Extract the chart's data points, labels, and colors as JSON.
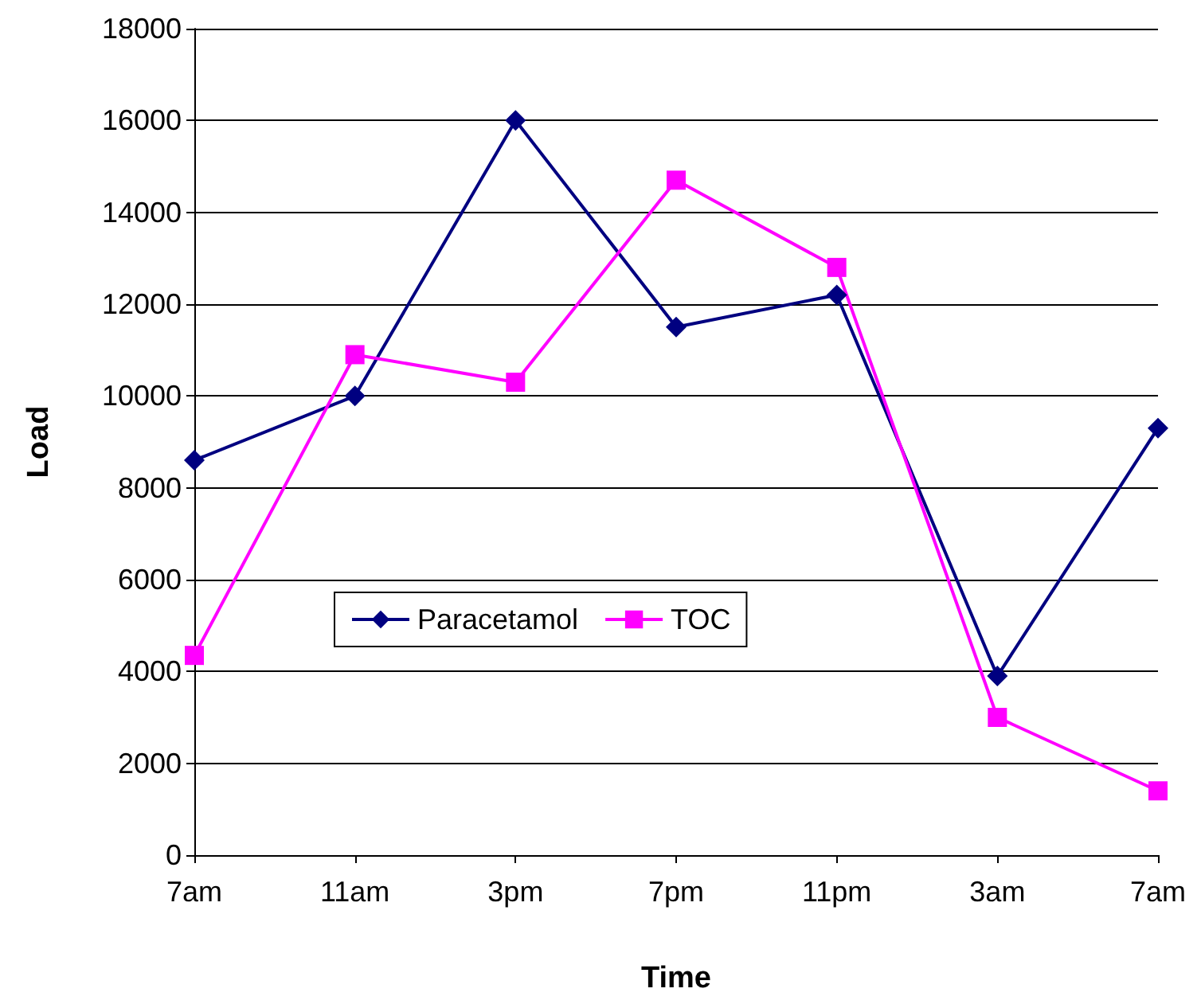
{
  "chart_data": {
    "type": "line",
    "xlabel": "Time",
    "ylabel": "Load",
    "categories": [
      "7am",
      "11am",
      "3pm",
      "7pm",
      "11pm",
      "3am",
      "7am"
    ],
    "series": [
      {
        "name": "Paracetamol",
        "color": "#000080",
        "marker": "diamond",
        "values": [
          8600,
          10000,
          16000,
          11500,
          12200,
          3900,
          9300
        ]
      },
      {
        "name": "TOC",
        "color": "#ff00ff",
        "marker": "square",
        "values": [
          4350,
          10900,
          10300,
          14700,
          12800,
          3000,
          1400
        ]
      }
    ],
    "ylim": [
      0,
      18000
    ],
    "yticks": [
      0,
      2000,
      4000,
      6000,
      8000,
      10000,
      12000,
      14000,
      16000,
      18000
    ],
    "grid": "y",
    "legend": "center",
    "line_style": "solid"
  }
}
